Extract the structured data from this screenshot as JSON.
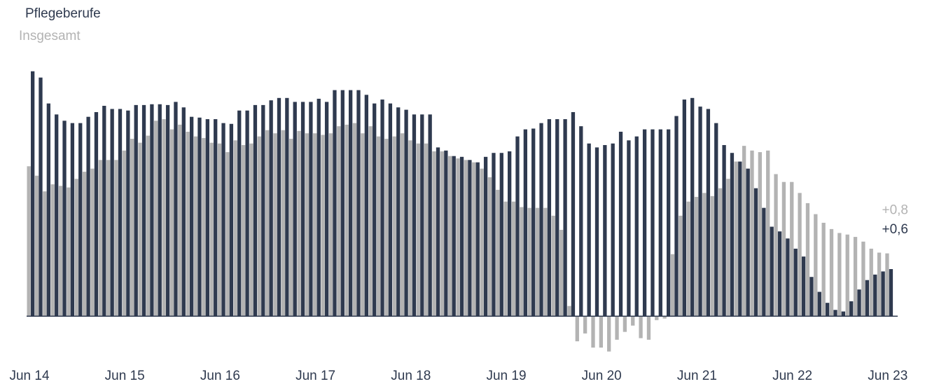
{
  "chart_data": {
    "type": "bar",
    "categories": [
      "Jun 14",
      null,
      null,
      null,
      null,
      null,
      null,
      null,
      null,
      null,
      null,
      null,
      "Jun 15",
      null,
      null,
      null,
      null,
      null,
      null,
      null,
      null,
      null,
      null,
      null,
      "Jun 16",
      null,
      null,
      null,
      null,
      null,
      null,
      null,
      null,
      null,
      null,
      null,
      "Jun 17",
      null,
      null,
      null,
      null,
      null,
      null,
      null,
      null,
      null,
      null,
      null,
      "Jun 18",
      null,
      null,
      null,
      null,
      null,
      null,
      null,
      null,
      null,
      null,
      null,
      "Jun 19",
      null,
      null,
      null,
      null,
      null,
      null,
      null,
      null,
      null,
      null,
      null,
      "Jun 20",
      null,
      null,
      null,
      null,
      null,
      null,
      null,
      null,
      null,
      null,
      null,
      "Jun 21",
      null,
      null,
      null,
      null,
      null,
      null,
      null,
      null,
      null,
      null,
      null,
      "Jun 22",
      null,
      null,
      null,
      null,
      null,
      null,
      null,
      null,
      null,
      null,
      null,
      "Jun 23"
    ],
    "series": [
      {
        "name": "Pflegeberufe",
        "color": "#2f3a4f",
        "end_label": "+0,6",
        "values": [
          3.12,
          3.04,
          2.71,
          2.57,
          2.49,
          2.46,
          2.46,
          2.54,
          2.6,
          2.68,
          2.64,
          2.64,
          2.62,
          2.69,
          2.69,
          2.7,
          2.7,
          2.69,
          2.73,
          2.66,
          2.54,
          2.53,
          2.51,
          2.51,
          2.46,
          2.45,
          2.62,
          2.62,
          2.69,
          2.69,
          2.75,
          2.78,
          2.78,
          2.73,
          2.73,
          2.73,
          2.77,
          2.73,
          2.88,
          2.88,
          2.88,
          2.88,
          2.82,
          2.71,
          2.76,
          2.71,
          2.66,
          2.63,
          2.57,
          2.57,
          2.57,
          2.15,
          2.11,
          2.04,
          2.03,
          1.99,
          1.96,
          2.03,
          2.08,
          2.08,
          2.1,
          2.29,
          2.38,
          2.39,
          2.46,
          2.51,
          2.51,
          2.51,
          2.6,
          2.42,
          2.2,
          2.15,
          2.18,
          2.2,
          2.35,
          2.24,
          2.29,
          2.38,
          2.38,
          2.38,
          2.38,
          2.55,
          2.76,
          2.78,
          2.67,
          2.64,
          2.46,
          2.18,
          2.08,
          1.97,
          1.88,
          1.63,
          1.38,
          1.14,
          1.08,
          0.99,
          0.86,
          0.76,
          0.5,
          0.31,
          0.17,
          0.08,
          0.06,
          0.19,
          0.34,
          0.46,
          0.53,
          0.57,
          0.6
        ]
      },
      {
        "name": "Insgesamt",
        "color": "#b3b3b3",
        "end_label": "+0,8",
        "values": [
          1.91,
          1.79,
          1.59,
          1.68,
          1.66,
          1.64,
          1.75,
          1.84,
          1.88,
          1.99,
          1.99,
          1.99,
          2.11,
          2.26,
          2.21,
          2.3,
          2.49,
          2.51,
          2.38,
          2.44,
          2.35,
          2.29,
          2.27,
          2.21,
          2.2,
          2.09,
          2.24,
          2.18,
          2.2,
          2.29,
          2.37,
          2.33,
          2.37,
          2.26,
          2.36,
          2.33,
          2.33,
          2.31,
          2.33,
          2.42,
          2.44,
          2.46,
          2.33,
          2.42,
          2.29,
          2.26,
          2.29,
          2.33,
          2.24,
          2.2,
          2.2,
          2.1,
          2.1,
          2.04,
          2.01,
          1.99,
          1.96,
          1.88,
          1.77,
          1.61,
          1.46,
          1.46,
          1.39,
          1.38,
          1.38,
          1.38,
          1.28,
          1.1,
          0.13,
          -0.32,
          -0.22,
          -0.4,
          -0.4,
          -0.45,
          -0.3,
          -0.2,
          -0.12,
          -0.28,
          -0.3,
          -0.05,
          -0.03,
          0.79,
          1.28,
          1.46,
          1.52,
          1.57,
          1.53,
          1.63,
          1.75,
          1.97,
          2.17,
          2.11,
          2.09,
          2.11,
          1.81,
          1.71,
          1.71,
          1.57,
          1.44,
          1.3,
          1.19,
          1.11,
          1.06,
          1.04,
          1.01,
          0.95,
          0.86,
          0.81,
          0.8
        ]
      }
    ],
    "ylim": [
      -0.48,
      3.18
    ]
  }
}
